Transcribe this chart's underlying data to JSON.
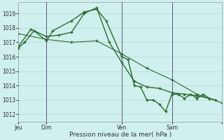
{
  "background_color": "#cff0ee",
  "grid_color_h": "#b8dbd8",
  "grid_color_v": "#b8dbd8",
  "line_color": "#2d6a2d",
  "ylim": [
    1011.5,
    1019.8
  ],
  "yticks": [
    1012,
    1013,
    1014,
    1015,
    1016,
    1017,
    1018,
    1019
  ],
  "xlabel": "Pression niveau de la mer( hPa )",
  "series1_x": [
    0,
    2,
    5,
    9,
    11,
    17,
    21,
    25,
    28,
    33,
    35,
    37,
    39,
    41,
    43,
    45,
    47,
    49,
    51,
    53,
    55,
    57,
    59,
    61,
    63
  ],
  "series1_y": [
    1016.6,
    1017.0,
    1017.8,
    1017.1,
    1017.8,
    1018.5,
    1019.1,
    1019.3,
    1018.5,
    1016.0,
    1015.8,
    1014.0,
    1013.9,
    1013.0,
    1013.0,
    1012.7,
    1012.2,
    1013.4,
    1013.4,
    1013.1,
    1013.4,
    1013.1,
    1013.4,
    1013.1,
    1013.0
  ],
  "series2_x": [
    0,
    4,
    9,
    13,
    17,
    21,
    25,
    29,
    33,
    37,
    41,
    45,
    49,
    53,
    57,
    61
  ],
  "series2_y": [
    1016.7,
    1017.9,
    1017.4,
    1017.5,
    1017.7,
    1019.0,
    1019.4,
    1017.0,
    1015.6,
    1014.3,
    1013.9,
    1013.8,
    1013.5,
    1013.4,
    1013.3,
    1013.1
  ],
  "series3_x": [
    0,
    9,
    17,
    25,
    33,
    41,
    49,
    57,
    65
  ],
  "series3_y": [
    1017.6,
    1017.2,
    1017.0,
    1017.1,
    1016.2,
    1015.2,
    1014.4,
    1013.4,
    1012.8
  ],
  "vlines_x": [
    9,
    33,
    49,
    65
  ],
  "vline_color": "#5a5a7a",
  "day_tick_x": [
    0,
    9,
    33,
    49,
    65
  ],
  "day_tick_labels": [
    "Jeu",
    "Dim",
    "Ven",
    "Sam",
    ""
  ],
  "xlim": [
    0,
    65
  ]
}
